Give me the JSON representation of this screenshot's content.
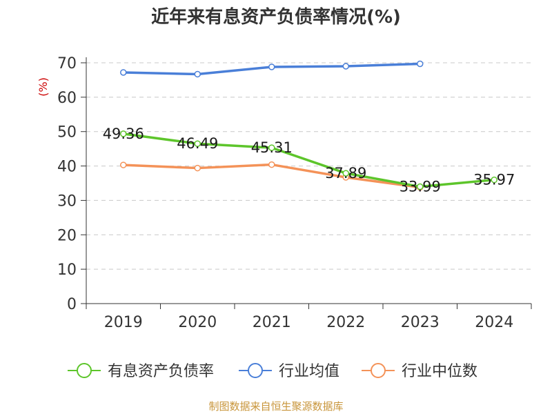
{
  "chart_data": {
    "type": "line",
    "title": "近年来有息资产负债率情况(%)",
    "ylabel": "(%)",
    "xlabel": "",
    "categories": [
      "2019",
      "2020",
      "2021",
      "2022",
      "2023",
      "2024"
    ],
    "ylim": [
      0,
      70
    ],
    "yticks": [
      0,
      10,
      20,
      30,
      40,
      50,
      60,
      70
    ],
    "grid": true,
    "legend_position": "bottom",
    "series": [
      {
        "name": "有息资产负债率",
        "color": "#5dc52b",
        "values": [
          49.36,
          46.49,
          45.31,
          37.89,
          33.99,
          35.97
        ],
        "labels": [
          "49.36",
          "46.49",
          "45.31",
          "37.89",
          "33.99",
          "35.97"
        ]
      },
      {
        "name": "行业均值",
        "color": "#4a7fd8",
        "values": [
          67.2,
          66.7,
          68.8,
          69.0,
          69.7,
          null
        ]
      },
      {
        "name": "行业中位数",
        "color": "#f49258",
        "values": [
          40.3,
          39.4,
          40.4,
          36.7,
          33.8,
          null
        ]
      }
    ]
  },
  "source": "制图数据来自恒生聚源数据库"
}
